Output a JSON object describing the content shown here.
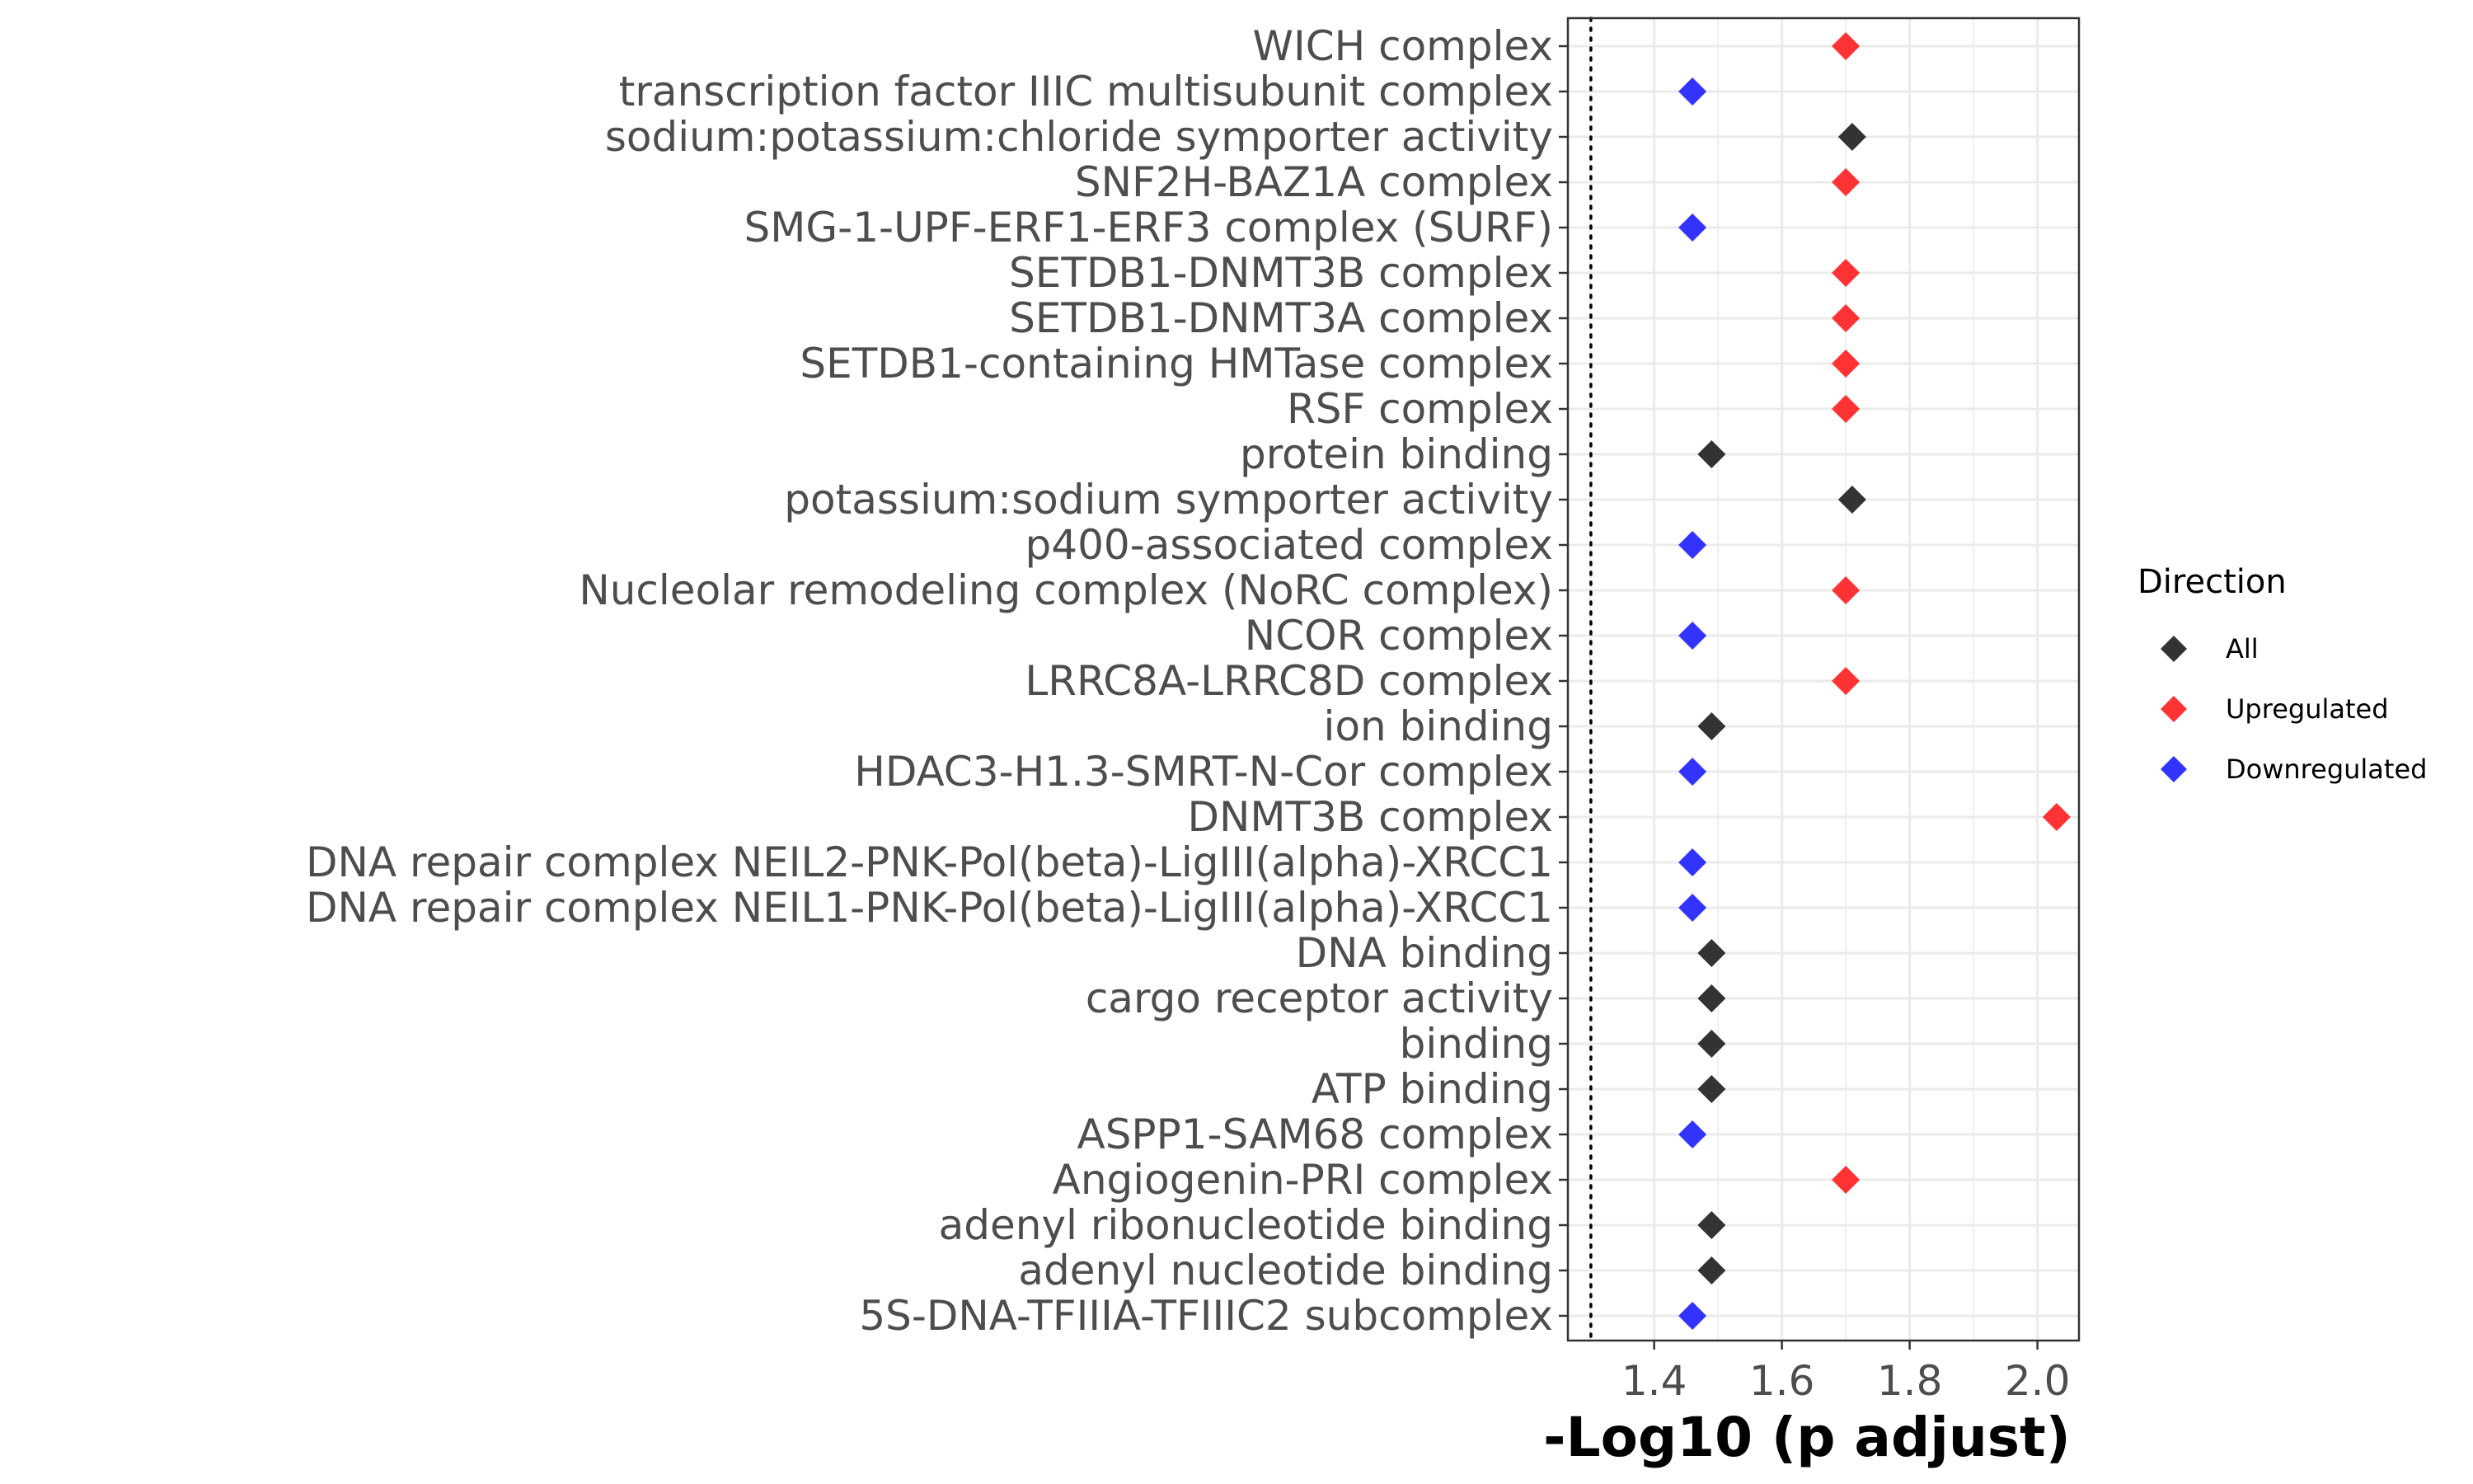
{
  "chart_data": {
    "type": "scatter",
    "xlabel": "-Log10 (p adjust)",
    "ylabel": "",
    "xlim": [
      1.265,
      2.065
    ],
    "x_ticks": [
      1.4,
      1.6,
      1.8,
      2.0
    ],
    "x_tick_labels": [
      "1.4",
      "1.6",
      "1.8",
      "2.0"
    ],
    "reference_line": {
      "x": 1.301,
      "style": "dotted"
    },
    "grid": true,
    "marker": "diamond",
    "legend": {
      "title": "Direction",
      "position": "right",
      "entries": [
        {
          "name": "All",
          "color": "#333333"
        },
        {
          "name": "Upregulated",
          "color": "#ff3333"
        },
        {
          "name": "Downregulated",
          "color": "#3333ff"
        }
      ]
    },
    "categories": [
      "WICH complex",
      "transcription factor IIIC multisubunit complex",
      "sodium:potassium:chloride symporter activity",
      "SNF2H-BAZ1A complex",
      "SMG-1-UPF-ERF1-ERF3 complex (SURF)",
      "SETDB1-DNMT3B complex",
      "SETDB1-DNMT3A complex",
      "SETDB1-containing HMTase complex",
      "RSF complex",
      "protein binding",
      "potassium:sodium symporter activity",
      "p400-associated complex",
      "Nucleolar remodeling complex (NoRC complex)",
      "NCOR complex",
      "LRRC8A-LRRC8D complex",
      "ion binding",
      "HDAC3-H1.3-SMRT-N-Cor complex",
      "DNMT3B complex",
      "DNA repair complex NEIL2-PNK-Pol(beta)-LigIII(alpha)-XRCC1",
      "DNA repair complex NEIL1-PNK-Pol(beta)-LigIII(alpha)-XRCC1",
      "DNA binding",
      "cargo receptor activity",
      "binding",
      "ATP binding",
      "ASPP1-SAM68 complex",
      "Angiogenin-PRI complex",
      "adenyl ribonucleotide binding",
      "adenyl nucleotide binding",
      "5S-DNA-TFIIIA-TFIIIC2 subcomplex"
    ],
    "points": [
      {
        "category": "WICH complex",
        "x": 1.7,
        "direction": "Upregulated"
      },
      {
        "category": "transcription factor IIIC multisubunit complex",
        "x": 1.46,
        "direction": "Downregulated"
      },
      {
        "category": "sodium:potassium:chloride symporter activity",
        "x": 1.71,
        "direction": "All"
      },
      {
        "category": "SNF2H-BAZ1A complex",
        "x": 1.7,
        "direction": "Upregulated"
      },
      {
        "category": "SMG-1-UPF-ERF1-ERF3 complex (SURF)",
        "x": 1.46,
        "direction": "Downregulated"
      },
      {
        "category": "SETDB1-DNMT3B complex",
        "x": 1.7,
        "direction": "Upregulated"
      },
      {
        "category": "SETDB1-DNMT3A complex",
        "x": 1.7,
        "direction": "Upregulated"
      },
      {
        "category": "SETDB1-containing HMTase complex",
        "x": 1.7,
        "direction": "Upregulated"
      },
      {
        "category": "RSF complex",
        "x": 1.7,
        "direction": "Upregulated"
      },
      {
        "category": "protein binding",
        "x": 1.49,
        "direction": "All"
      },
      {
        "category": "potassium:sodium symporter activity",
        "x": 1.71,
        "direction": "All"
      },
      {
        "category": "p400-associated complex",
        "x": 1.46,
        "direction": "Downregulated"
      },
      {
        "category": "Nucleolar remodeling complex (NoRC complex)",
        "x": 1.7,
        "direction": "Upregulated"
      },
      {
        "category": "NCOR complex",
        "x": 1.46,
        "direction": "Downregulated"
      },
      {
        "category": "LRRC8A-LRRC8D complex",
        "x": 1.7,
        "direction": "Upregulated"
      },
      {
        "category": "ion binding",
        "x": 1.49,
        "direction": "All"
      },
      {
        "category": "HDAC3-H1.3-SMRT-N-Cor complex",
        "x": 1.46,
        "direction": "Downregulated"
      },
      {
        "category": "DNMT3B complex",
        "x": 2.03,
        "direction": "Upregulated"
      },
      {
        "category": "DNA repair complex NEIL2-PNK-Pol(beta)-LigIII(alpha)-XRCC1",
        "x": 1.46,
        "direction": "Downregulated"
      },
      {
        "category": "DNA repair complex NEIL1-PNK-Pol(beta)-LigIII(alpha)-XRCC1",
        "x": 1.46,
        "direction": "Downregulated"
      },
      {
        "category": "DNA binding",
        "x": 1.49,
        "direction": "All"
      },
      {
        "category": "cargo receptor activity",
        "x": 1.49,
        "direction": "All"
      },
      {
        "category": "binding",
        "x": 1.49,
        "direction": "All"
      },
      {
        "category": "ATP binding",
        "x": 1.49,
        "direction": "All"
      },
      {
        "category": "ASPP1-SAM68 complex",
        "x": 1.46,
        "direction": "Downregulated"
      },
      {
        "category": "Angiogenin-PRI complex",
        "x": 1.7,
        "direction": "Upregulated"
      },
      {
        "category": "adenyl ribonucleotide binding",
        "x": 1.49,
        "direction": "All"
      },
      {
        "category": "adenyl nucleotide binding",
        "x": 1.49,
        "direction": "All"
      },
      {
        "category": "5S-DNA-TFIIIA-TFIIIC2 subcomplex",
        "x": 1.46,
        "direction": "Downregulated"
      }
    ]
  }
}
